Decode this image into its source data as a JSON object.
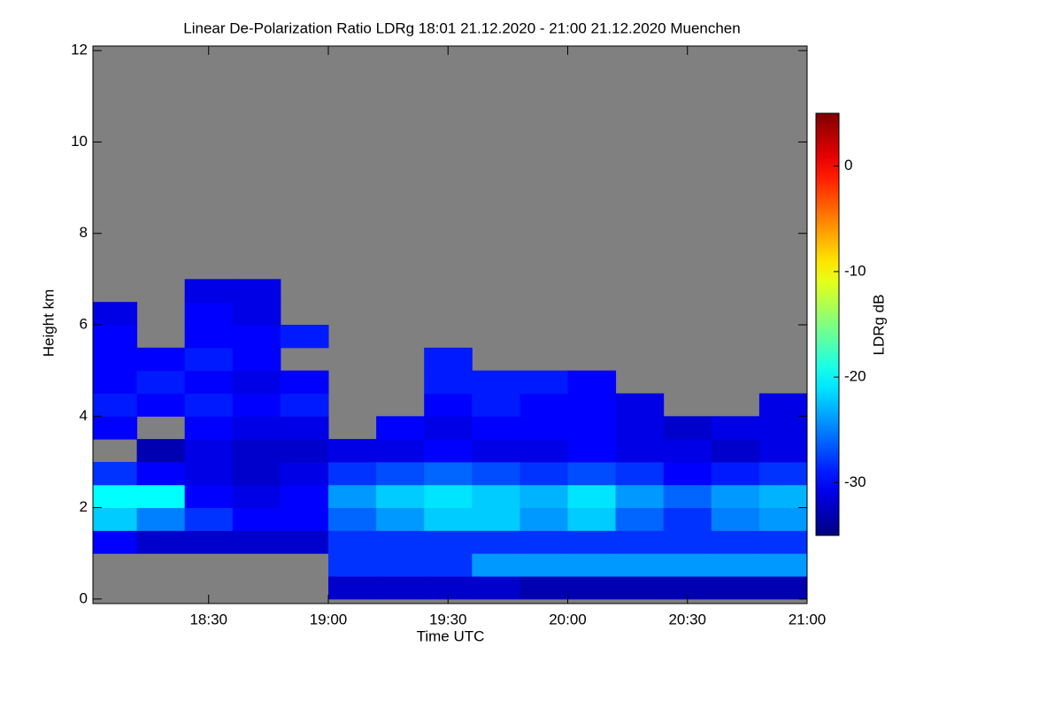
{
  "chart_data": {
    "type": "heatmap",
    "title": "Linear De-Polarization Ratio LDRg   18:01 21.12.2020 - 21:00 21.12.2020 Muenchen",
    "x_label": "Time UTC",
    "y_label": "Height km",
    "colorbar_label": "LDRg dB",
    "xlim": [
      1081,
      1260
    ],
    "xticks": [
      {
        "value": 1110,
        "label": "18:30"
      },
      {
        "value": 1140,
        "label": "19:00"
      },
      {
        "value": 1170,
        "label": "19:30"
      },
      {
        "value": 1200,
        "label": "20:00"
      },
      {
        "value": 1230,
        "label": "20:30"
      },
      {
        "value": 1260,
        "label": "21:00"
      }
    ],
    "ylim": [
      -0.1,
      12.1
    ],
    "yticks": [
      0,
      2,
      4,
      6,
      8,
      10,
      12
    ],
    "zlim": [
      -35,
      5
    ],
    "zticks": [
      0,
      -10,
      -20,
      -30
    ],
    "colormap": "jet",
    "background": "#808080",
    "xbins": [
      1080,
      1092,
      1104,
      1116,
      1128,
      1140,
      1152,
      1164,
      1176,
      1188,
      1200,
      1212,
      1224,
      1236,
      1248,
      1260
    ],
    "ybins": [
      0,
      0.5,
      1,
      1.5,
      2,
      2.5,
      3,
      3.5,
      4,
      4.5,
      5,
      5.5,
      6,
      6.5,
      7
    ],
    "z": [
      [
        null,
        null,
        null,
        null,
        null,
        -32,
        -32,
        -32,
        -32,
        -33,
        -33,
        -33,
        -33,
        -33,
        -33
      ],
      [
        null,
        null,
        null,
        null,
        null,
        -28,
        -28,
        -28,
        -24,
        -24,
        -24,
        -24,
        -24,
        -24,
        -24
      ],
      [
        -30,
        -32,
        -32,
        -32,
        -32,
        -28,
        -28,
        -28,
        -28,
        -28,
        -28,
        -28,
        -28,
        -28,
        -28
      ],
      [
        -22,
        -25,
        -28,
        -30,
        -30,
        -26,
        -24,
        -22,
        -22,
        -24,
        -22,
        -26,
        -28,
        -25,
        -24
      ],
      [
        -20,
        -20,
        -30,
        -31,
        -30,
        -24,
        -22,
        -21,
        -22,
        -23,
        -21,
        -24,
        -26,
        -24,
        -23
      ],
      [
        -28,
        -30,
        -31,
        -32,
        -31,
        -28,
        -27,
        -26,
        -27,
        -28,
        -27,
        -28,
        -30,
        -29,
        -28
      ],
      [
        null,
        -33,
        -31,
        -32,
        -32,
        -31,
        -31,
        -30,
        -31,
        -31,
        -30,
        -31,
        -31,
        -32,
        -31
      ],
      [
        -30,
        null,
        -30,
        -31,
        -31,
        null,
        -30,
        -31,
        -30,
        -30,
        -30,
        -31,
        -32,
        -31,
        -31
      ],
      [
        -29,
        -30,
        -29,
        -30,
        -29,
        null,
        null,
        -30,
        -29,
        -30,
        -30,
        -31,
        null,
        null,
        -31
      ],
      [
        -30,
        -29,
        -30,
        -31,
        -30,
        null,
        null,
        -29,
        -29,
        -29,
        -30,
        null,
        null,
        null,
        null
      ],
      [
        -30,
        -30,
        -29,
        -30,
        null,
        null,
        null,
        -29,
        null,
        null,
        null,
        null,
        null,
        null,
        null
      ],
      [
        -30,
        null,
        -30,
        -30,
        -29,
        null,
        null,
        null,
        null,
        null,
        null,
        null,
        null,
        null,
        null
      ],
      [
        -31,
        null,
        -30,
        -31,
        null,
        null,
        null,
        null,
        null,
        null,
        null,
        null,
        null,
        null,
        null
      ],
      [
        null,
        null,
        -31,
        -31,
        null,
        null,
        null,
        null,
        null,
        null,
        null,
        null,
        null,
        null,
        null
      ]
    ]
  }
}
